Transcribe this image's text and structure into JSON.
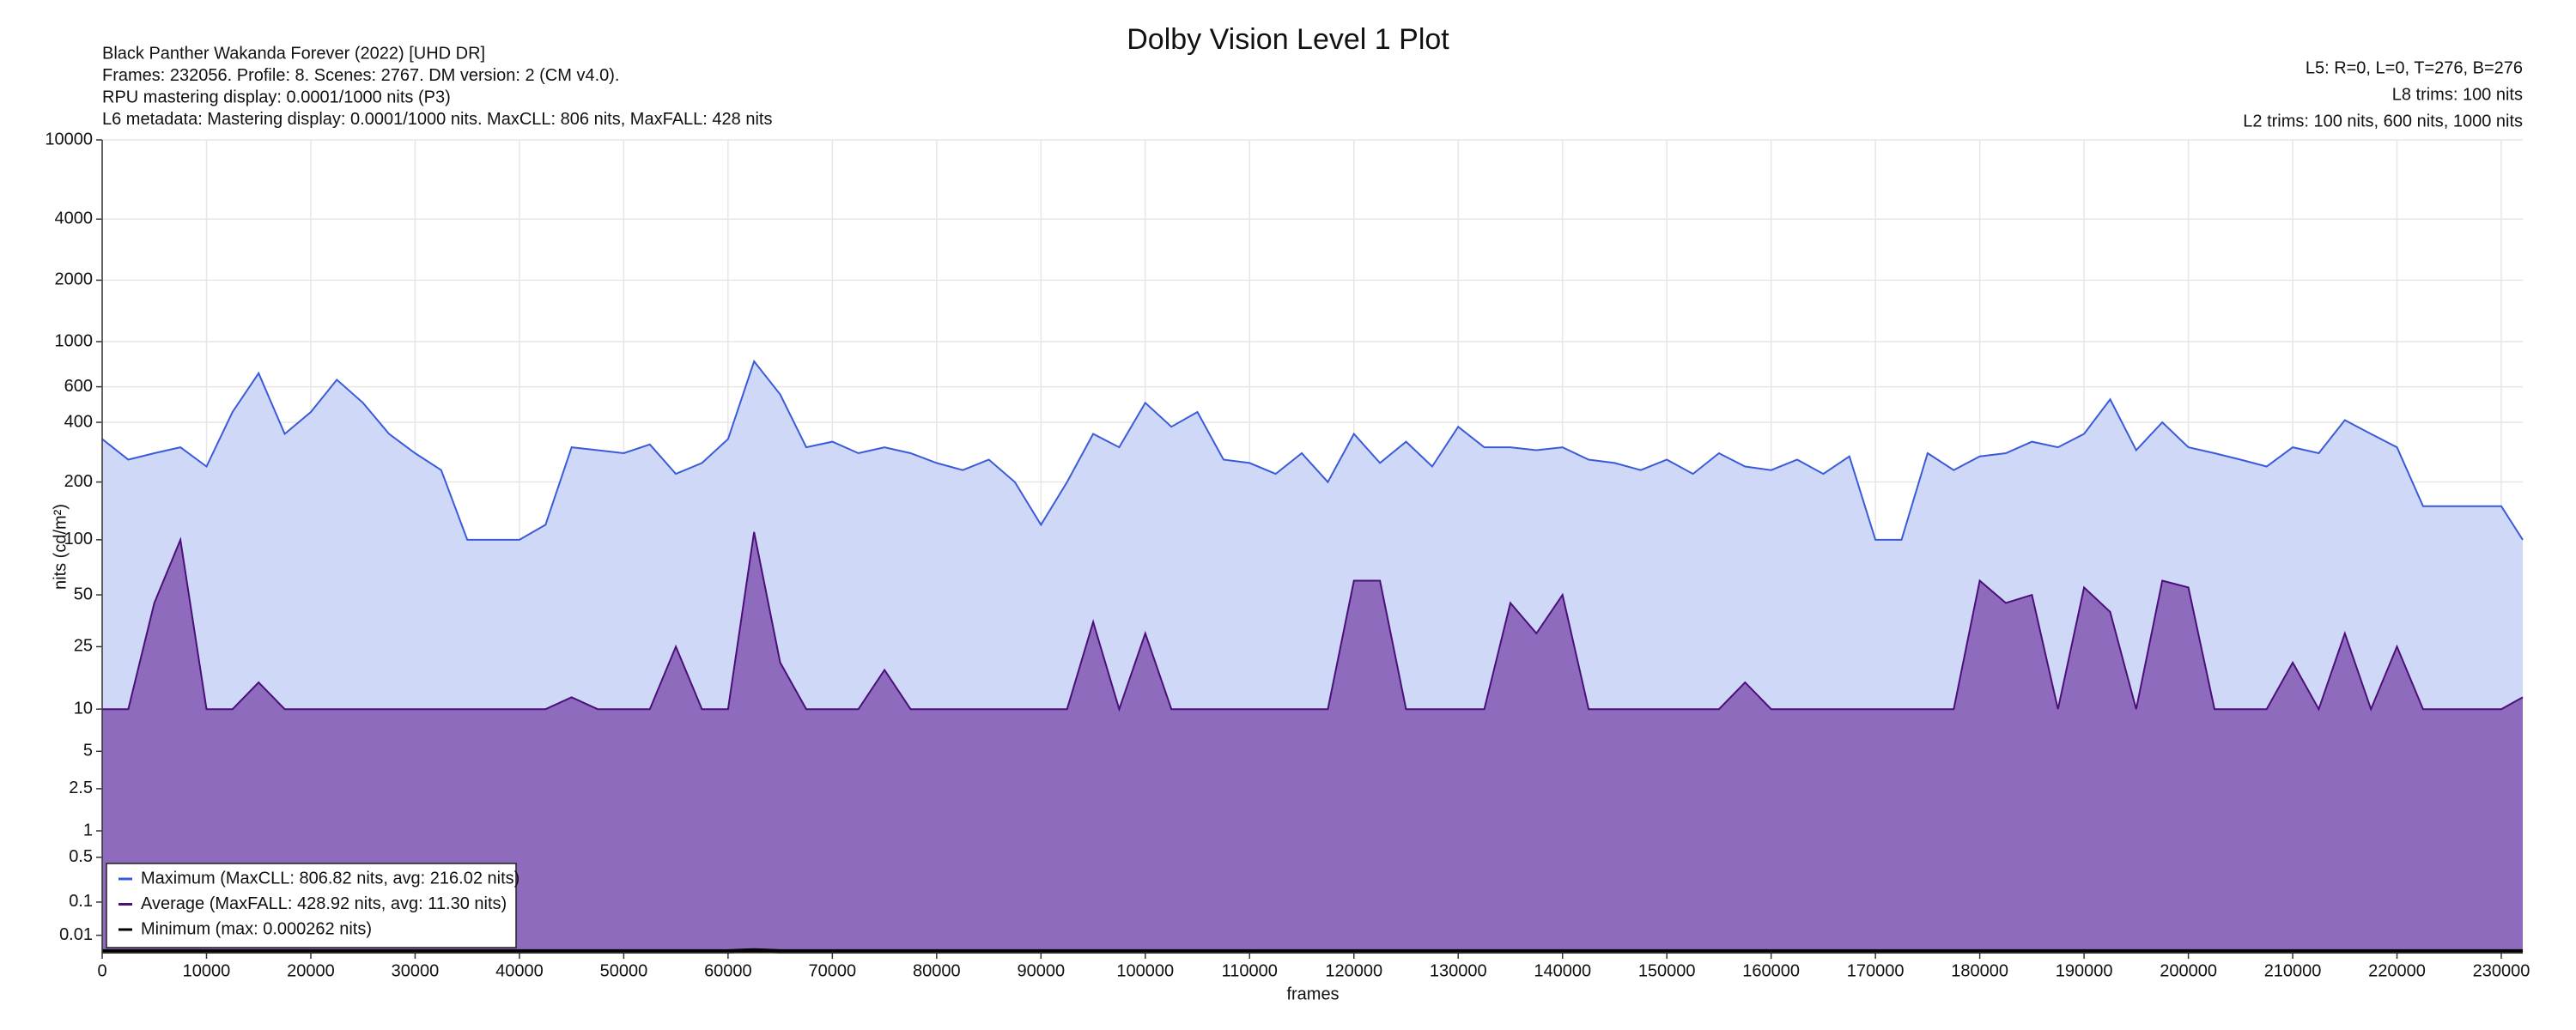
{
  "chart_data": {
    "type": "area",
    "title": "Dolby Vision Level 1 Plot",
    "annotations_left": [
      "Black Panther Wakanda Forever (2022) [UHD DR]",
      "Frames: 232056. Profile: 8. Scenes: 2767. DM version: 2 (CM v4.0).",
      "RPU mastering display: 0.0001/1000 nits  (P3)",
      "L6 metadata: Mastering display: 0.0001/1000 nits. MaxCLL: 806 nits, MaxFALL: 428 nits"
    ],
    "annotations_right": [
      "L5: R=0, L=0, T=276, B=276",
      "L8 trims: 100 nits",
      "L2 trims: 100 nits, 600 nits, 1000 nits"
    ],
    "xlabel": "frames",
    "ylabel": "nits (cd/m²)",
    "y_scale": "pq",
    "grid": true,
    "legend": "lower left",
    "xlim": [
      0,
      232056
    ],
    "xticks": [
      0,
      10000,
      20000,
      30000,
      40000,
      50000,
      60000,
      70000,
      80000,
      90000,
      100000,
      110000,
      120000,
      130000,
      140000,
      150000,
      160000,
      170000,
      180000,
      190000,
      200000,
      210000,
      220000,
      230000
    ],
    "ylim": [
      0,
      10000
    ],
    "yticks": [
      0.01,
      0.1,
      0.5,
      1,
      2.5,
      5,
      10,
      25,
      50,
      100,
      200,
      400,
      600,
      1000,
      2000,
      4000,
      10000
    ],
    "x": [
      0,
      2500,
      5000,
      7500,
      10000,
      12500,
      15000,
      17500,
      20000,
      22500,
      25000,
      27500,
      30000,
      32500,
      35000,
      37500,
      40000,
      42500,
      45000,
      47500,
      50000,
      52500,
      55000,
      57500,
      60000,
      62500,
      65000,
      67500,
      70000,
      72500,
      75000,
      77500,
      80000,
      82500,
      85000,
      87500,
      90000,
      92500,
      95000,
      97500,
      100000,
      102500,
      105000,
      107500,
      110000,
      112500,
      115000,
      117500,
      120000,
      122500,
      125000,
      127500,
      130000,
      132500,
      135000,
      137500,
      140000,
      142500,
      145000,
      147500,
      150000,
      152500,
      155000,
      157500,
      160000,
      162500,
      165000,
      167500,
      170000,
      172500,
      175000,
      177500,
      180000,
      182500,
      185000,
      187500,
      190000,
      192500,
      195000,
      197500,
      200000,
      202500,
      205000,
      207500,
      210000,
      212500,
      215000,
      217500,
      220000,
      222500,
      225000,
      227500,
      230000,
      232056
    ],
    "series": [
      {
        "name": "Maximum (MaxCLL: 806.82 nits, avg: 216.02 nits)",
        "color": "#3a5bd9",
        "fill": "#d0d8f7",
        "values": [
          330,
          260,
          280,
          300,
          240,
          450,
          700,
          350,
          450,
          650,
          500,
          350,
          280,
          230,
          100,
          100,
          100,
          120,
          300,
          290,
          280,
          310,
          220,
          250,
          330,
          800,
          550,
          300,
          320,
          280,
          300,
          280,
          250,
          230,
          260,
          200,
          120,
          200,
          350,
          300,
          500,
          380,
          450,
          260,
          250,
          220,
          280,
          200,
          350,
          250,
          320,
          240,
          380,
          300,
          300,
          290,
          300,
          260,
          250,
          230,
          260,
          220,
          280,
          240,
          230,
          260,
          220,
          270,
          100,
          100,
          280,
          230,
          270,
          280,
          320,
          300,
          350,
          520,
          290,
          400,
          300,
          280,
          260,
          240,
          300,
          280,
          410,
          350,
          300,
          150,
          150,
          150,
          150,
          100
        ]
      },
      {
        "name": "Average (MaxFALL: 428.92 nits, avg: 11.30 nits)",
        "color": "#4b0f7a",
        "fill": "#8e6bbd",
        "values": [
          10,
          10,
          45,
          100,
          10,
          10,
          15,
          10,
          10,
          10,
          10,
          10,
          10,
          10,
          10,
          10,
          10,
          10,
          12,
          10,
          10,
          10,
          25,
          10,
          10,
          110,
          20,
          10,
          10,
          10,
          18,
          10,
          10,
          10,
          10,
          10,
          10,
          10,
          35,
          10,
          30,
          10,
          10,
          10,
          10,
          10,
          10,
          10,
          60,
          60,
          10,
          10,
          10,
          10,
          45,
          30,
          50,
          10,
          10,
          10,
          10,
          10,
          10,
          15,
          10,
          10,
          10,
          10,
          10,
          10,
          10,
          10,
          60,
          45,
          50,
          10,
          55,
          40,
          10,
          60,
          55,
          10,
          10,
          10,
          20,
          10,
          30,
          10,
          25,
          10,
          10,
          10,
          10,
          12
        ]
      },
      {
        "name": "Minimum (max: 0.000262 nits)",
        "color": "#000000",
        "values": [
          0.0001,
          0.0001,
          0.0001,
          0.0001,
          0.0001,
          0.0001,
          0.0001,
          0.0001,
          0.0001,
          0.0001,
          0.0001,
          0.0001,
          0.0001,
          0.0001,
          0.0001,
          0.0001,
          0.0001,
          0.0001,
          0.0001,
          0.0001,
          0.0001,
          0.0001,
          0.0001,
          0.0001,
          0.0001,
          0.000262,
          0.0001,
          0.0001,
          0.0001,
          0.0001,
          0.0001,
          0.0001,
          0.0001,
          0.0001,
          0.0001,
          0.0001,
          0.0001,
          0.0001,
          0.0001,
          0.0001,
          0.0001,
          0.0001,
          0.0001,
          0.0001,
          0.0001,
          0.0001,
          0.0001,
          0.0001,
          0.0001,
          0.0001,
          0.0001,
          0.0001,
          0.0001,
          0.0001,
          0.0001,
          0.0001,
          0.0001,
          0.0001,
          0.0001,
          0.0001,
          0.0001,
          0.0001,
          0.0001,
          0.0001,
          0.0001,
          0.0001,
          0.0001,
          0.0001,
          0.0001,
          0.0001,
          0.0001,
          0.0001,
          0.0001,
          0.0001,
          0.0001,
          0.0001,
          0.0001,
          0.0001,
          0.0001,
          0.0001,
          0.0001,
          0.0001,
          0.0001,
          0.0001,
          0.0001,
          0.0001,
          0.0001,
          0.0001,
          0.0001,
          0.0001,
          0.0001,
          0.0001,
          0.0001,
          0.0001
        ]
      }
    ]
  }
}
